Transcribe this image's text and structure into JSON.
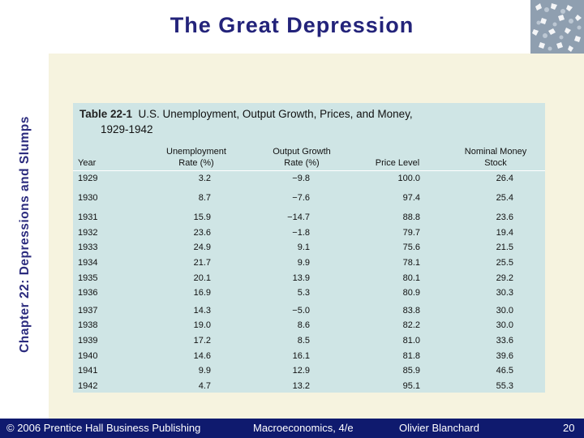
{
  "slide": {
    "title": "The Great Depression",
    "side_title": "Chapter 22: Depressions and Slumps"
  },
  "table": {
    "label": "Table 22-1",
    "caption_line1": "U.S. Unemployment, Output Growth, Prices, and Money,",
    "caption_line2": "1929-1942",
    "headers": {
      "year": "Year",
      "unemployment_1": "Unemployment",
      "unemployment_2": "Rate (%)",
      "growth_1": "Output Growth",
      "growth_2": "Rate (%)",
      "price": "Price Level",
      "money_1": "Nominal Money",
      "money_2": "Stock"
    },
    "rows": [
      {
        "year": "1929",
        "unemployment": "3.2",
        "growth": "−9.8",
        "price": "100.0",
        "money": "26.4"
      },
      {
        "year": "1930",
        "unemployment": "8.7",
        "growth": "−7.6",
        "price": "97.4",
        "money": "25.4"
      },
      {
        "year": "1931",
        "unemployment": "15.9",
        "growth": "−14.7",
        "price": "88.8",
        "money": "23.6"
      },
      {
        "year": "1932",
        "unemployment": "23.6",
        "growth": "−1.8",
        "price": "79.7",
        "money": "19.4"
      },
      {
        "year": "1933",
        "unemployment": "24.9",
        "growth": "9.1",
        "price": "75.6",
        "money": "21.5"
      },
      {
        "year": "1934",
        "unemployment": "21.7",
        "growth": "9.9",
        "price": "78.1",
        "money": "25.5"
      },
      {
        "year": "1935",
        "unemployment": "20.1",
        "growth": "13.9",
        "price": "80.1",
        "money": "29.2"
      },
      {
        "year": "1936",
        "unemployment": "16.9",
        "growth": "5.3",
        "price": "80.9",
        "money": "30.3"
      },
      {
        "year": "1937",
        "unemployment": "14.3",
        "growth": "−5.0",
        "price": "83.8",
        "money": "30.0"
      },
      {
        "year": "1938",
        "unemployment": "19.0",
        "growth": "8.6",
        "price": "82.2",
        "money": "30.0"
      },
      {
        "year": "1939",
        "unemployment": "17.2",
        "growth": "8.5",
        "price": "81.0",
        "money": "33.6"
      },
      {
        "year": "1940",
        "unemployment": "14.6",
        "growth": "16.1",
        "price": "81.8",
        "money": "39.6"
      },
      {
        "year": "1941",
        "unemployment": "9.9",
        "growth": "12.9",
        "price": "85.9",
        "money": "46.5"
      },
      {
        "year": "1942",
        "unemployment": "4.7",
        "growth": "13.2",
        "price": "95.1",
        "money": "55.3"
      }
    ]
  },
  "footer": {
    "copyright": "© 2006 Prentice Hall Business Publishing",
    "book": "Macroeconomics, 4/e",
    "author": "Olivier Blanchard",
    "page": "20"
  },
  "colors": {
    "title": "#23237a",
    "footer_bg": "#0f1a6e",
    "table_bg": "#cfe5e5",
    "panel_bg": "#f6f3df"
  }
}
